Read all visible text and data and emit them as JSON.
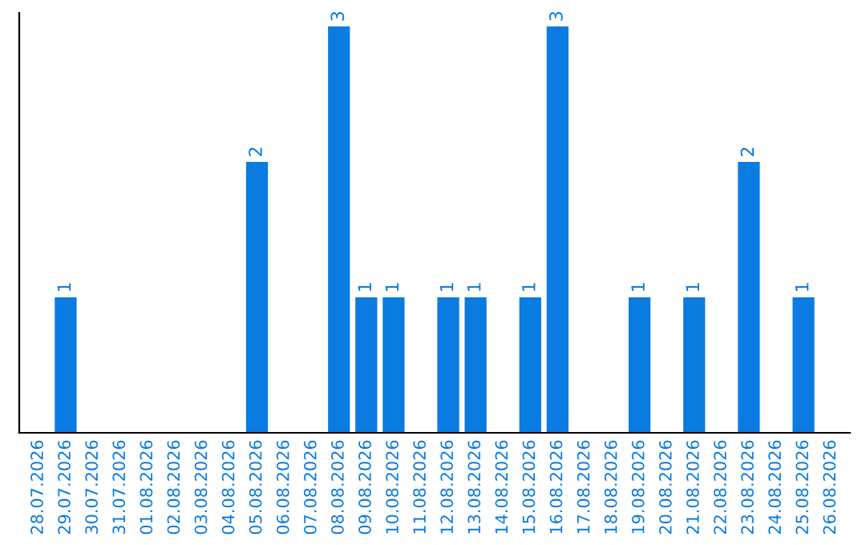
{
  "chart_data": {
    "type": "bar",
    "categories": [
      "28.07.2026",
      "29.07.2026",
      "30.07.2026",
      "31.07.2026",
      "01.08.2026",
      "02.08.2026",
      "03.08.2026",
      "04.08.2026",
      "05.08.2026",
      "06.08.2026",
      "07.08.2026",
      "08.08.2026",
      "09.08.2026",
      "10.08.2026",
      "11.08.2026",
      "12.08.2026",
      "13.08.2026",
      "14.08.2026",
      "15.08.2026",
      "16.08.2026",
      "17.08.2026",
      "18.08.2026",
      "19.08.2026",
      "20.08.2026",
      "21.08.2026",
      "22.08.2026",
      "23.08.2026",
      "24.08.2026",
      "25.08.2026",
      "26.08.2026"
    ],
    "values": [
      0,
      1,
      0,
      0,
      0,
      0,
      0,
      0,
      2,
      0,
      0,
      3,
      1,
      1,
      0,
      1,
      1,
      0,
      1,
      3,
      0,
      0,
      1,
      0,
      1,
      0,
      2,
      0,
      1,
      0
    ],
    "value_labels": [
      null,
      "1",
      null,
      null,
      null,
      null,
      null,
      null,
      "2",
      null,
      null,
      "3",
      "1",
      "1",
      null,
      "1",
      "1",
      null,
      "1",
      "3",
      null,
      null,
      "1",
      null,
      "1",
      null,
      "2",
      null,
      "1",
      null
    ],
    "color": "#0a7be0",
    "ylim": [
      0,
      3.1
    ],
    "tick_labels": "x",
    "grid": false,
    "legend": false
  }
}
